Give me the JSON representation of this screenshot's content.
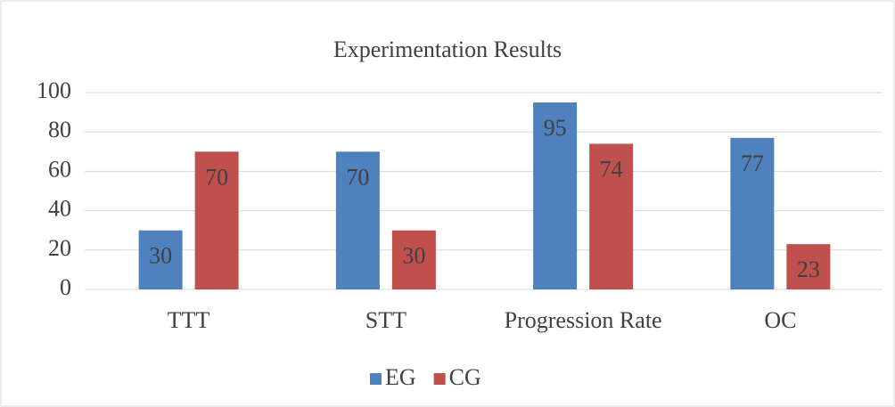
{
  "chart_data": {
    "type": "bar",
    "title": "Experimentation Results",
    "categories": [
      "TTT",
      "STT",
      "Progression Rate",
      "OC"
    ],
    "series": [
      {
        "name": "EG",
        "color": "#4f81bd",
        "values": [
          30,
          70,
          95,
          77
        ]
      },
      {
        "name": "CG",
        "color": "#c0504d",
        "values": [
          70,
          30,
          74,
          23
        ]
      }
    ],
    "ylim": [
      0,
      100
    ],
    "yticks": [
      0,
      20,
      40,
      60,
      80,
      100
    ],
    "grid": true,
    "legend": "bottom"
  }
}
